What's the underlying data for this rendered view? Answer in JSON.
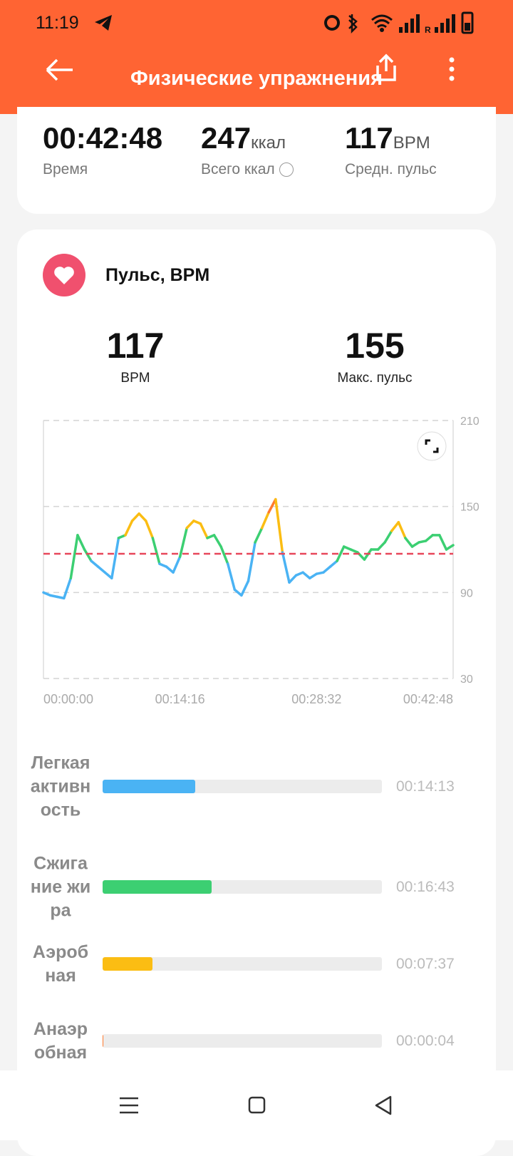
{
  "status_bar": {
    "time": "11:19"
  },
  "header": {
    "title": "Физические упражнения"
  },
  "summary": [
    {
      "value": "00:42:48",
      "label": "Время"
    },
    {
      "value": "247",
      "unit": "ккал",
      "label": "Всего ккал"
    },
    {
      "value": "117",
      "unit": "BPM",
      "label": "Средн. пульс"
    }
  ],
  "heart": {
    "title": "Пульс, BPM",
    "stats": [
      {
        "value": "117",
        "label": "BPM"
      },
      {
        "value": "155",
        "label": "Макс. пульс"
      }
    ],
    "chart": {
      "type": "line",
      "x": [
        0,
        42.8,
        85.6,
        128.4,
        171.2,
        214,
        256.8,
        299.6,
        342.4,
        385.2,
        428,
        470.8,
        513.6,
        556.4,
        599.2,
        642,
        684.8,
        727.6,
        770.4,
        813.2,
        856,
        898.8,
        941.6,
        984.4,
        1027.2,
        1070,
        1112.8,
        1155.6,
        1198.4,
        1241.2,
        1284,
        1326.8,
        1369.6,
        1412.4,
        1455.2,
        1498,
        1540.8,
        1583.6,
        1626.4,
        1669.2,
        1712,
        1754.8,
        1797.6,
        1840.4,
        1883.2,
        1926,
        1968.8,
        2011.6,
        2054.4,
        2097.2,
        2140,
        2182.8,
        2225.6,
        2268.4,
        2311.2,
        2354,
        2396.8,
        2439.6,
        2482.4,
        2525.2,
        2568
      ],
      "values": [
        90,
        88,
        87,
        86,
        100,
        130,
        120,
        112,
        108,
        104,
        100,
        128,
        130,
        140,
        145,
        140,
        128,
        110,
        108,
        104,
        115,
        135,
        140,
        138,
        128,
        130,
        122,
        110,
        92,
        88,
        98,
        125,
        135,
        146,
        155,
        118,
        97,
        102,
        104,
        100,
        103,
        104,
        108,
        112,
        122,
        120,
        118,
        113,
        120,
        120,
        125,
        133,
        139,
        128,
        122,
        125,
        126,
        130,
        130,
        120,
        123
      ],
      "xlim": [
        0,
        2568
      ],
      "ylim": [
        30,
        210
      ],
      "yticks": [
        30,
        90,
        150,
        210
      ],
      "xticks": [
        {
          "value": 0,
          "label": "00:00:00"
        },
        {
          "value": 856,
          "label": "00:14:16"
        },
        {
          "value": 1712,
          "label": "00:28:32"
        },
        {
          "value": 2568,
          "label": "00:42:48"
        }
      ],
      "average": 117,
      "average_color": "#e8475a",
      "color_bands": [
        {
          "min": 30,
          "color": "#4ab3f4"
        },
        {
          "min": 115,
          "color": "#3ccf72"
        },
        {
          "min": 133,
          "color": "#fbbd13"
        },
        {
          "min": 150,
          "color": "#ff7a2e"
        }
      ]
    }
  },
  "zones": [
    {
      "name": "Легкая активность",
      "duration": "00:14:13",
      "color": "#4ab3f4"
    },
    {
      "name": "Сжигание жира",
      "duration": "00:16:43",
      "color": "#3ccf72"
    },
    {
      "name": "Аэробная",
      "duration": "00:07:37",
      "color": "#fbbd13"
    },
    {
      "name": "Анаэробная",
      "duration": "00:00:04",
      "color": "#ff7a2e"
    }
  ]
}
